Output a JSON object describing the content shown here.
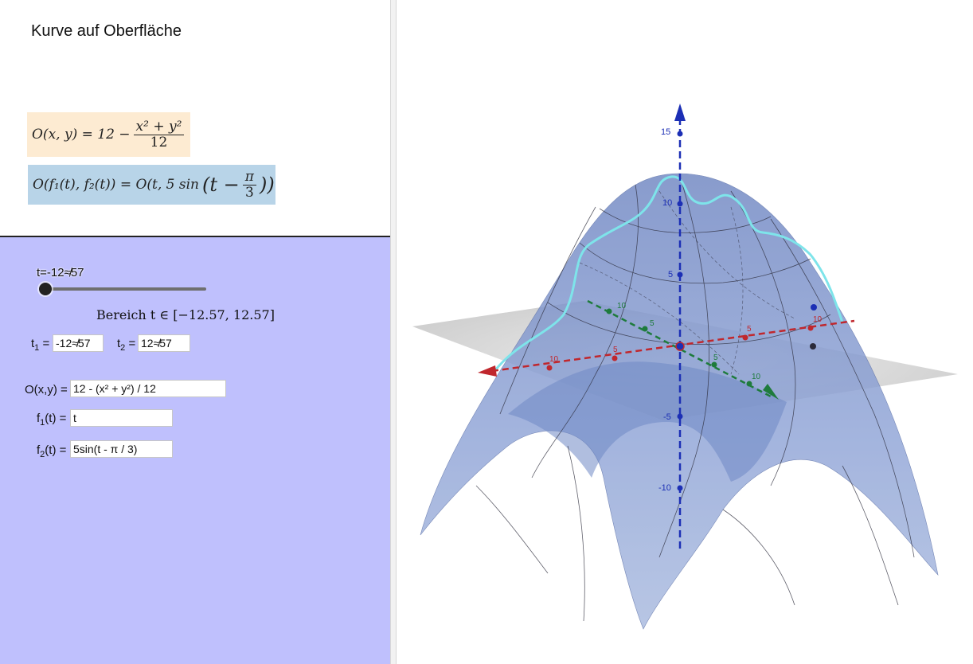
{
  "app": {
    "title": "Kurve auf Oberfläche"
  },
  "formulas": {
    "surface": {
      "lhs": "O(x, y) = 12 −",
      "num": "x² + y²",
      "den": "12"
    },
    "curve": {
      "lhs": "O(f₁(t), f₂(t)) = O(t, 5 sin",
      "paren_open": "(t −",
      "num": "π",
      "den": "3",
      "paren_close": "))"
    }
  },
  "slider": {
    "label": "t=-12≉57",
    "value": -12.57,
    "min": -12.57,
    "max": 12.57
  },
  "range_text": "Bereich t ∈ [−12.57, 12.57]",
  "t1": {
    "label": "t",
    "sub": "1",
    "eq": "=",
    "value": "-12≉57"
  },
  "t2": {
    "label": "t",
    "sub": "2",
    "eq": "=",
    "value": "12≉57"
  },
  "O_field": {
    "label": "O(x,y) =",
    "value": "12 - (x² + y²) / 12"
  },
  "f1_field": {
    "label": "f",
    "sub": "1",
    "rest": "(t) =",
    "value": "t"
  },
  "f2_field": {
    "label": "f",
    "sub": "2",
    "rest": "(t) =",
    "value": "5sin(t - π / 3)"
  },
  "axes": {
    "z_ticks": [
      "15",
      "10",
      "5",
      "-5",
      "-10"
    ],
    "x_ticks_neg": [
      "10",
      "5"
    ],
    "x_ticks_pos": [
      "5",
      "10"
    ],
    "y_ticks_near": [
      "10",
      "5"
    ],
    "y_ticks_far": [
      "5",
      "10"
    ]
  },
  "colors": {
    "formula1_bg": "#fdebd2",
    "formula2_bg": "#b8d4e8",
    "panel_bg": "#bfc0fd",
    "slider_track": "#6f6f6f",
    "surface": "#8fa6d6",
    "curve": "#6ad8e0",
    "x_axis": "#c0272d",
    "y_axis": "#1e7b3c",
    "z_axis": "#1c2fb5"
  },
  "icons": {
    "slider_knob": "slider-knob-icon"
  }
}
